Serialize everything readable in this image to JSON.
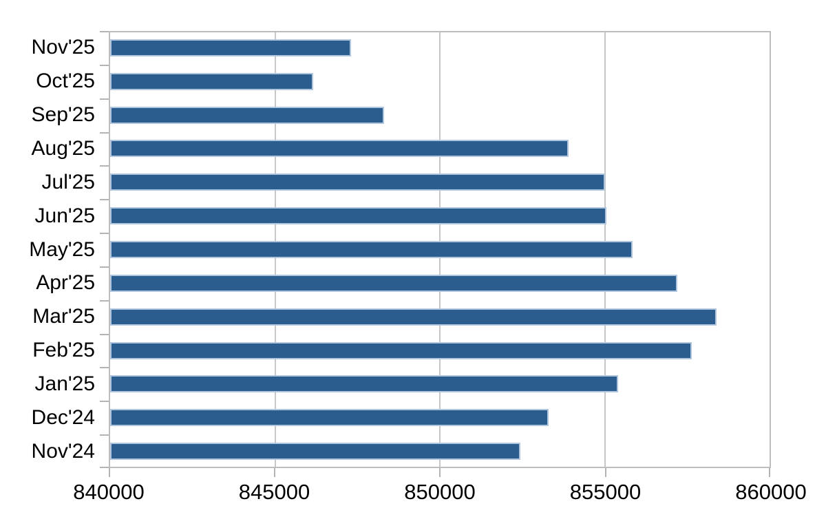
{
  "chart_data": {
    "type": "bar",
    "orientation": "horizontal",
    "title": "",
    "xlabel": "",
    "ylabel": "",
    "categories": [
      "Nov'25",
      "Oct'25",
      "Sep'25",
      "Aug'25",
      "Jul'25",
      "Jun'25",
      "May'25",
      "Apr'25",
      "Mar'25",
      "Feb'25",
      "Jan'25",
      "Dec'24",
      "Nov'24"
    ],
    "values": [
      847300,
      846150,
      848300,
      853900,
      855000,
      855050,
      855850,
      857200,
      858400,
      857650,
      855400,
      853300,
      852450
    ],
    "xlim": [
      840000,
      860000
    ],
    "xticks": [
      840000,
      845000,
      850000,
      855000,
      860000
    ],
    "xtick_labels": [
      "840000",
      "845000",
      "850000",
      "855000",
      "860000"
    ],
    "grid": true,
    "legend": false,
    "colors": {
      "bar_fill": "#2B5D8F",
      "bar_edge": "#AFC6DE",
      "gridline": "#C7C7C7",
      "plot_border": "#BDBDBD",
      "tick_mark": "#B3B3B3",
      "text": "#000000",
      "background": "#FFFFFF"
    }
  }
}
